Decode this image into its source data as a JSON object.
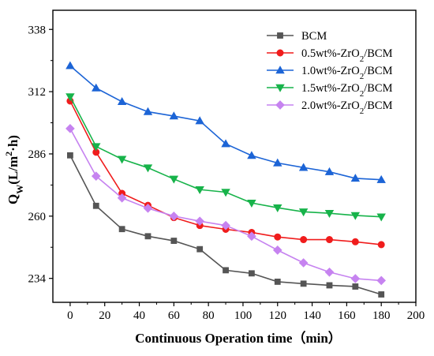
{
  "chart_data": {
    "type": "line",
    "title": "",
    "xlabel": "Continuous Operation time（min）",
    "ylabel": "QW(L/m2·h)",
    "ylabel_parts": {
      "main": "Q",
      "sub": "W",
      "open": "(L/m",
      "sup": "2",
      "close": "·h)"
    },
    "xlim": [
      -10,
      200
    ],
    "ylim": [
      224,
      346
    ],
    "xticks": [
      0,
      20,
      40,
      60,
      80,
      100,
      120,
      140,
      160,
      180,
      200
    ],
    "yticks": [
      234,
      260,
      286,
      312,
      338
    ],
    "grid": false,
    "legend_position": "top-right",
    "x": [
      0,
      15,
      30,
      45,
      60,
      75,
      90,
      105,
      120,
      135,
      150,
      165,
      180
    ],
    "series": [
      {
        "name": "BCM",
        "label_parts": [
          {
            "t": "BCM"
          }
        ],
        "color": "#555555",
        "marker": "square",
        "values": [
          285.4,
          264.3,
          254.6,
          251.6,
          249.7,
          246.2,
          237.4,
          236.1,
          232.6,
          231.8,
          231.1,
          230.6,
          227.3
        ]
      },
      {
        "name": "0.5wt%-ZrO2/BCM",
        "label_parts": [
          {
            "t": "0.5wt%-ZrO"
          },
          {
            "t": "2",
            "sub": true
          },
          {
            "t": "/BCM"
          }
        ],
        "color": "#f01c1c",
        "marker": "circle",
        "values": [
          308.1,
          286.7,
          269.5,
          264.5,
          259.4,
          256.1,
          254.5,
          253.2,
          251.3,
          250.2,
          250.2,
          249.3,
          248.1
        ]
      },
      {
        "name": "1.0wt%-ZrO2/BCM",
        "label_parts": [
          {
            "t": "1.0wt%-ZrO"
          },
          {
            "t": "2",
            "sub": true
          },
          {
            "t": "/BCM"
          }
        ],
        "color": "#1c64d6",
        "marker": "triangle-up",
        "values": [
          322.8,
          313.5,
          307.8,
          303.6,
          301.8,
          299.8,
          290.2,
          285.3,
          282.2,
          280.3,
          278.5,
          275.8,
          275.2
        ]
      },
      {
        "name": "1.5wt%-ZrO2/BCM",
        "label_parts": [
          {
            "t": "1.5wt%-ZrO"
          },
          {
            "t": "2",
            "sub": true
          },
          {
            "t": "/BCM"
          }
        ],
        "color": "#17b34a",
        "marker": "triangle-down",
        "values": [
          309.9,
          289.1,
          283.8,
          280.2,
          275.5,
          271.1,
          270.0,
          265.5,
          263.5,
          261.8,
          261.2,
          260.3,
          259.7
        ]
      },
      {
        "name": "2.0wt%-ZrO2/BCM",
        "label_parts": [
          {
            "t": "2.0wt%-ZrO"
          },
          {
            "t": "2",
            "sub": true
          },
          {
            "t": "/BCM"
          }
        ],
        "color": "#c683f0",
        "marker": "diamond",
        "values": [
          296.6,
          276.7,
          267.6,
          263.3,
          260.0,
          257.9,
          256.1,
          251.6,
          245.8,
          240.5,
          236.6,
          233.9,
          233.1
        ]
      }
    ]
  }
}
